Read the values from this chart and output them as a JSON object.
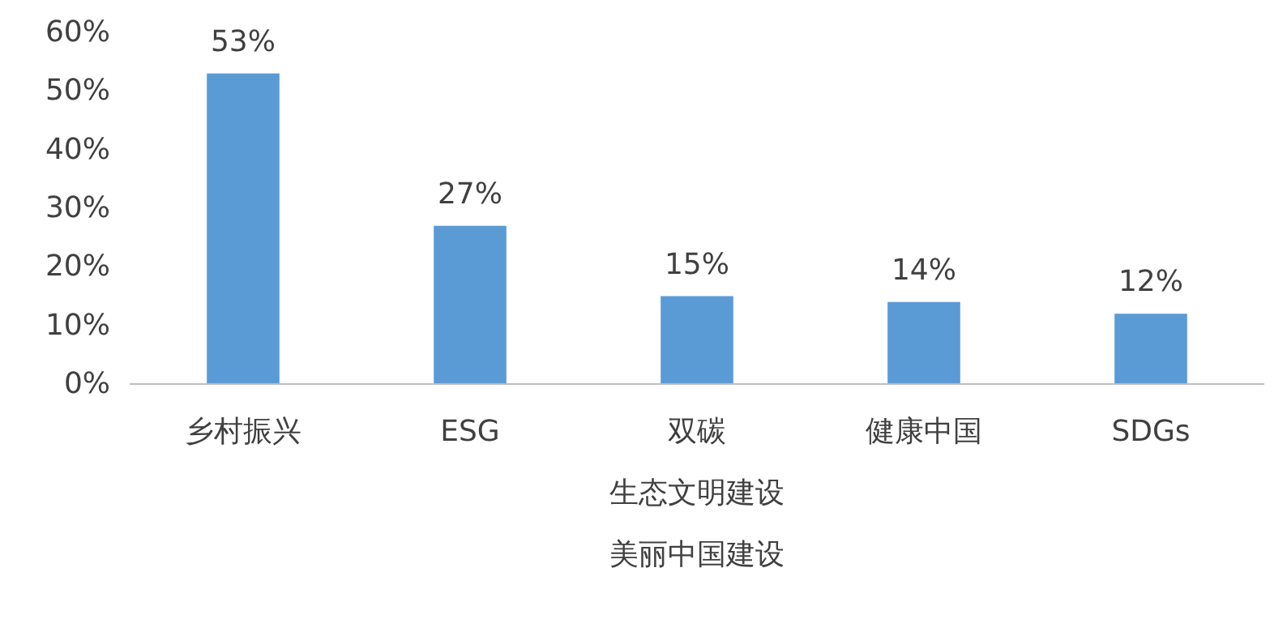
{
  "chart_data": {
    "type": "bar",
    "categories": [
      "乡村振兴",
      "ESG",
      "双碳",
      "健康中国",
      "SDGs"
    ],
    "values": [
      53,
      27,
      15,
      14,
      12
    ],
    "color": "#5b9bd5",
    "data_labels": true,
    "value_labels": [
      "53%",
      "27%",
      "15%",
      "14%",
      "12%"
    ],
    "ylim": [
      0,
      60
    ],
    "yticks": [
      {
        "value": 0,
        "label": "0%"
      },
      {
        "value": 10,
        "label": "10%"
      },
      {
        "value": 20,
        "label": "20%"
      },
      {
        "value": 30,
        "label": "30%"
      },
      {
        "value": 40,
        "label": "40%"
      },
      {
        "value": 50,
        "label": "50%"
      },
      {
        "value": 60,
        "label": "60%"
      }
    ],
    "annotations": [
      "生态文明建设",
      "美丽中国建设"
    ],
    "grid": false
  }
}
